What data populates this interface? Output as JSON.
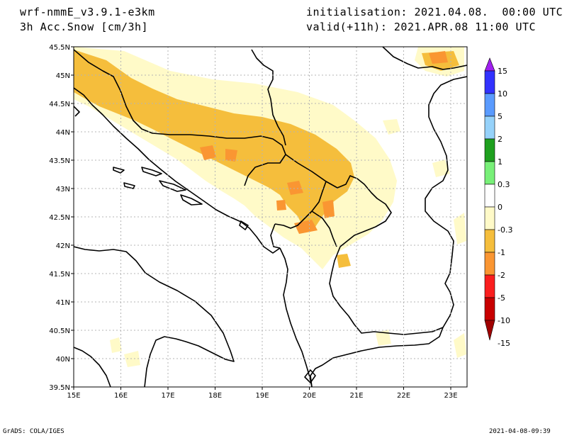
{
  "header": {
    "model": "wrf-nmmE_v3.9.1-e3km",
    "variable": "3h Acc.Snow [cm/3h]",
    "init": "initialisation: 2021.04.08.  00:00 UTC",
    "valid": "valid(+11h): 2021.APR.08 11:00 UTC"
  },
  "footer": {
    "left": "GrADS: COLA/IGES",
    "right": "2021-04-08-09:39"
  },
  "map": {
    "lat_labels": [
      "45.5N",
      "45N",
      "44.5N",
      "44N",
      "43.5N",
      "43N",
      "42.5N",
      "42N",
      "41.5N",
      "41N",
      "40.5N",
      "40N",
      "39.5N"
    ],
    "lon_labels": [
      "15E",
      "16E",
      "17E",
      "18E",
      "19E",
      "20E",
      "21E",
      "22E",
      "23E"
    ],
    "gridline_color": "#b4b4b4",
    "coastline_color": "#000000"
  },
  "colorbar": {
    "labels": [
      "15",
      "10",
      "5",
      "2",
      "1",
      "0.3",
      "0",
      "-0.3",
      "-1",
      "-2",
      "-5",
      "-10",
      "-15"
    ],
    "colors": [
      "#a020f0",
      "#3232ff",
      "#5a9bff",
      "#96d2fa",
      "#1ea01e",
      "#78f078",
      "#ffffff",
      "#fffac8",
      "#f5be3c",
      "#fa9632",
      "#fa1e1e",
      "#c80000",
      "#a00000"
    ]
  },
  "palette": {
    "light_snow": "#fffac8",
    "moderate_snow": "#f5be3c",
    "heavy_snow": "#fa9632"
  }
}
